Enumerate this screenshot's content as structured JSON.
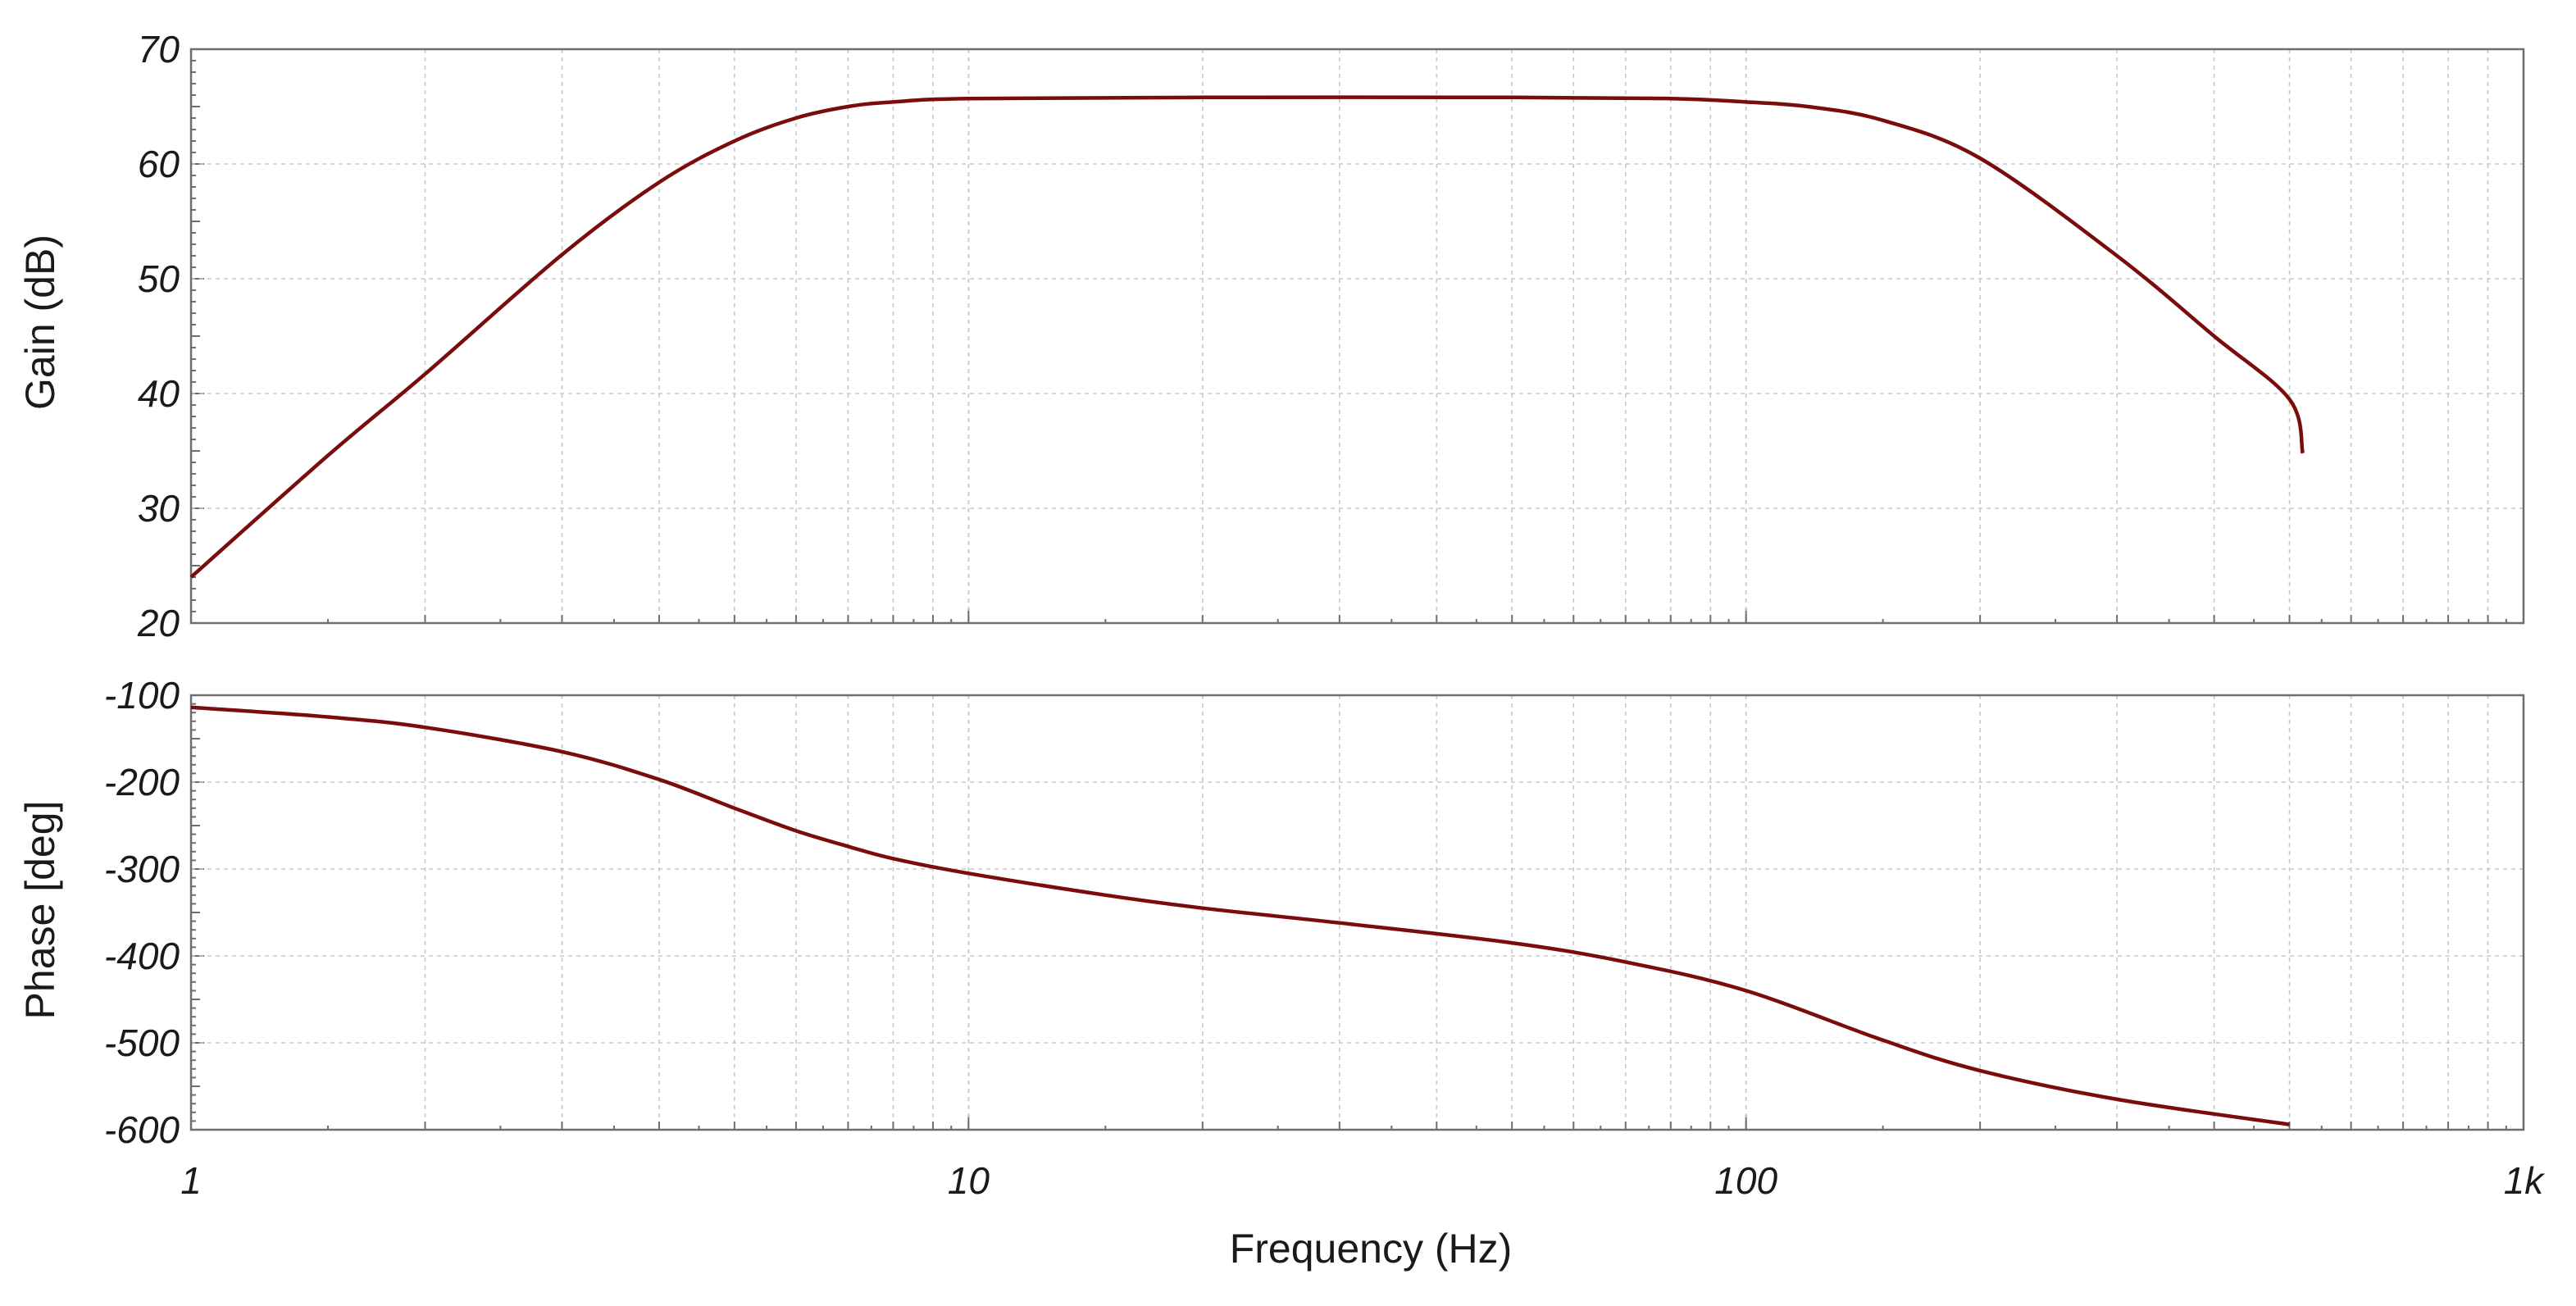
{
  "chart_data": [
    {
      "type": "line",
      "title": "",
      "xlabel": "",
      "ylabel": "Gain (dB)",
      "xscale": "log",
      "xlim": [
        1,
        1000
      ],
      "ylim": [
        20,
        70
      ],
      "yticks": [
        "20",
        "30",
        "40",
        "50",
        "60",
        "70"
      ],
      "grid": true,
      "color": "#7a0c0c",
      "series": [
        {
          "x": [
            1,
            1.5,
            2,
            3,
            4,
            5,
            6,
            7,
            8,
            10,
            20,
            50,
            80,
            100,
            120,
            150,
            200,
            300,
            400,
            500,
            520
          ],
          "y": [
            24,
            34.6,
            41.7,
            52.1,
            58.4,
            62.0,
            64.0,
            65.0,
            65.4,
            65.7,
            65.8,
            65.8,
            65.7,
            65.4,
            65.0,
            63.8,
            60.5,
            52.0,
            45.0,
            39.5,
            34.8
          ]
        }
      ]
    },
    {
      "type": "line",
      "title": "",
      "xlabel": "Frequency (Hz)",
      "ylabel": "Phase [deg]",
      "xscale": "log",
      "xlim": [
        1,
        1000
      ],
      "ylim": [
        -600,
        -100
      ],
      "yticks": [
        "-100",
        "-200",
        "-300",
        "-400",
        "-500",
        "-600"
      ],
      "xticks": [
        "1",
        "10",
        "100",
        "1k"
      ],
      "grid": true,
      "color": "#7a0c0c",
      "series": [
        {
          "x": [
            1,
            1.5,
            2,
            3,
            4,
            5,
            6,
            7,
            8,
            10,
            15,
            20,
            30,
            50,
            70,
            100,
            150,
            200,
            300,
            500
          ],
          "y": [
            -114,
            -125,
            -137,
            -165,
            -197,
            -230,
            -256,
            -274,
            -288,
            -305,
            -330,
            -345,
            -362,
            -385,
            -407,
            -440,
            -497,
            -532,
            -565,
            -594
          ]
        }
      ]
    }
  ]
}
